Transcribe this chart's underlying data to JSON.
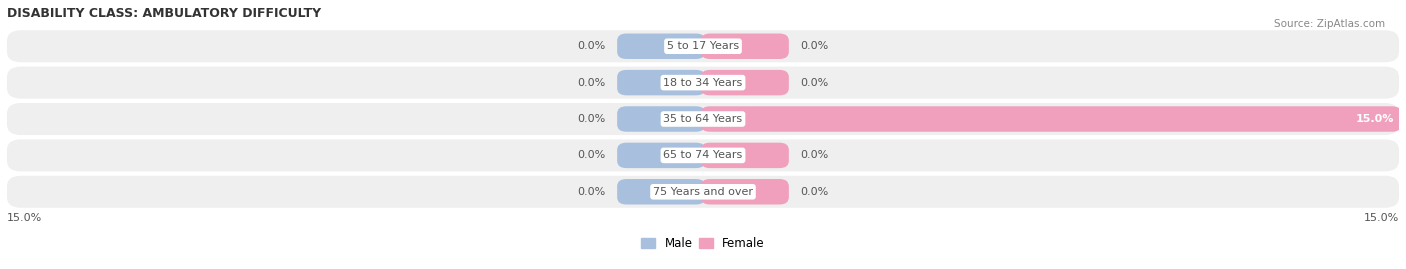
{
  "title": "DISABILITY CLASS: AMBULATORY DIFFICULTY",
  "source": "Source: ZipAtlas.com",
  "categories": [
    "5 to 17 Years",
    "18 to 34 Years",
    "35 to 64 Years",
    "65 to 74 Years",
    "75 Years and over"
  ],
  "male_values": [
    0.0,
    0.0,
    0.0,
    0.0,
    0.0
  ],
  "female_values": [
    0.0,
    0.0,
    15.0,
    0.0,
    0.0
  ],
  "max_val": 15.0,
  "male_color": "#a8c0de",
  "female_color": "#f0a0bc",
  "row_bg_color": "#efefef",
  "label_color": "#555555",
  "title_color": "#333333",
  "axis_label_left": "15.0%",
  "axis_label_right": "15.0%",
  "figsize": [
    14.06,
    2.69
  ],
  "dpi": 100
}
